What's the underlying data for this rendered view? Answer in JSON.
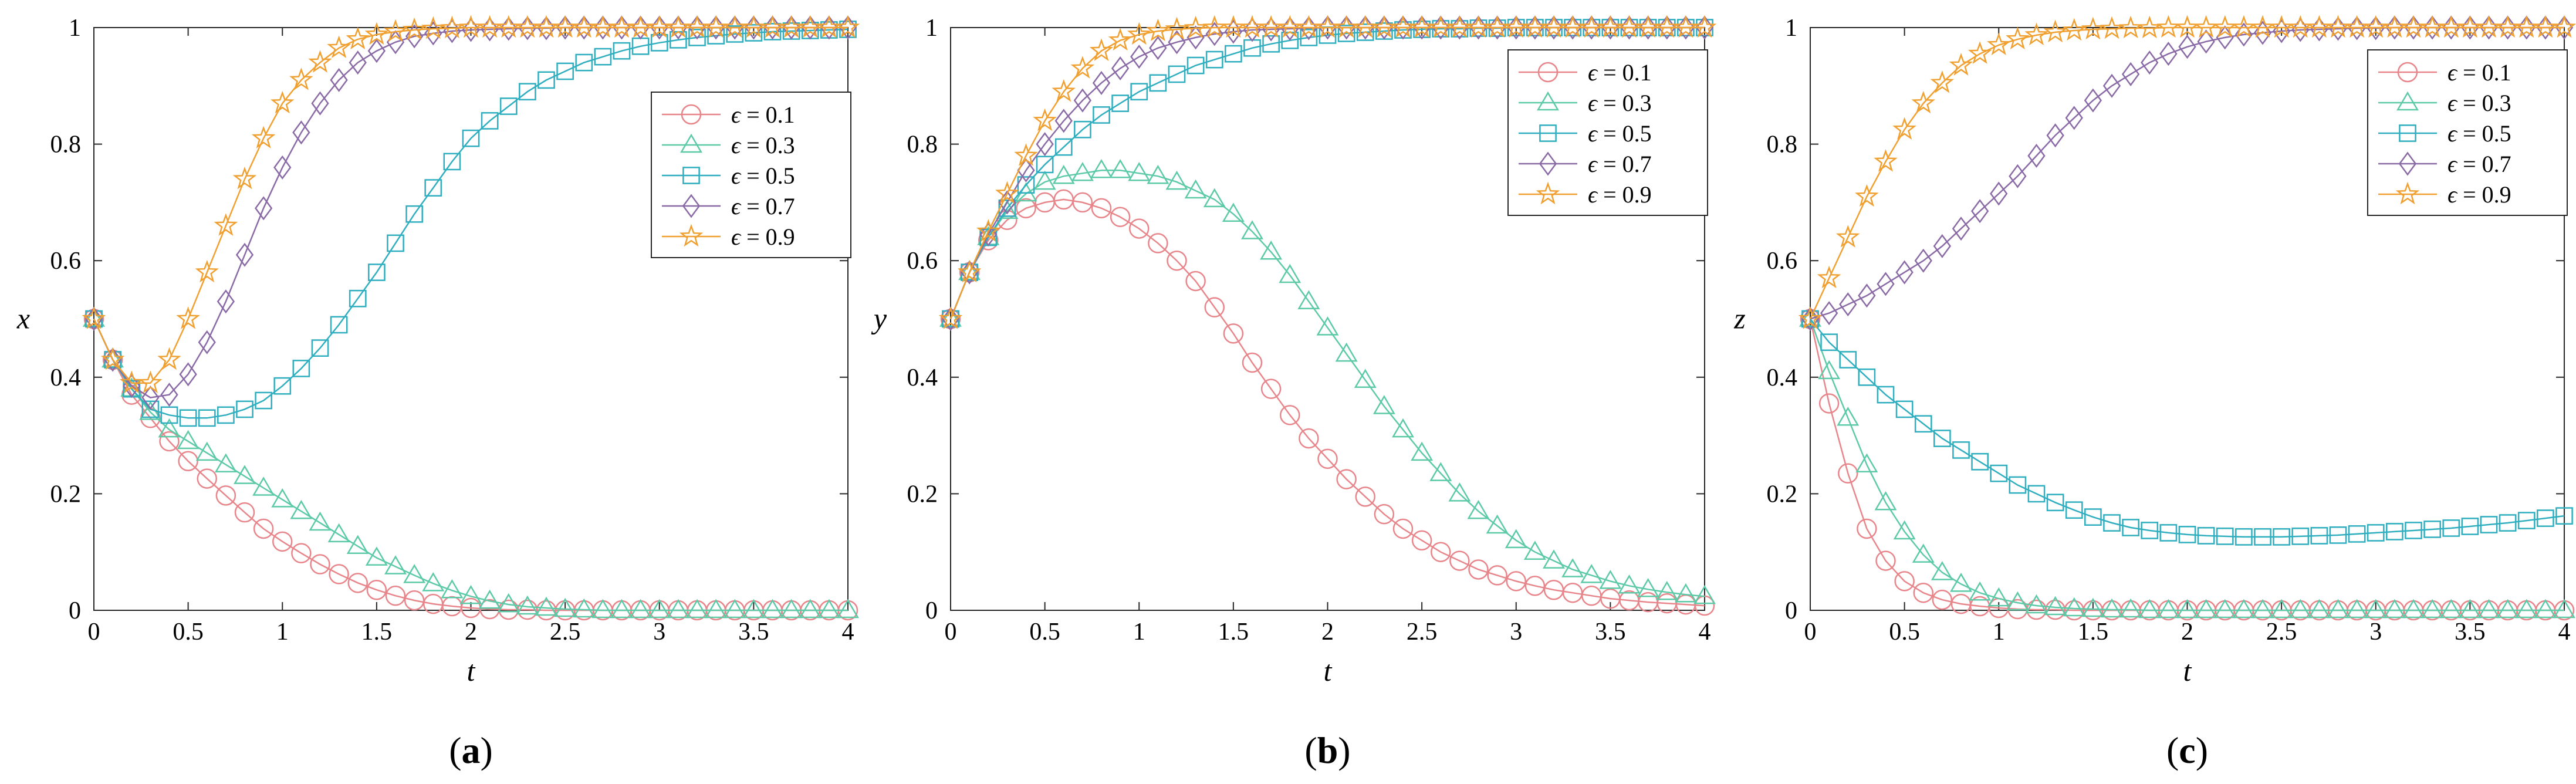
{
  "chart_data": [
    {
      "panel_label": "a",
      "caption": "(a)",
      "type": "line",
      "xlabel": "t",
      "ylabel": "x",
      "xlim": [
        0,
        4
      ],
      "ylim": [
        0,
        1
      ],
      "xticks": [
        "0",
        "0.5",
        "1",
        "1.5",
        "2",
        "2.5",
        "3",
        "3.5",
        "4"
      ],
      "yticks": [
        "0",
        "0.2",
        "0.4",
        "0.6",
        "0.8",
        "1"
      ],
      "legend_position": "top-right",
      "x": [
        0,
        0.1,
        0.2,
        0.3,
        0.4,
        0.5,
        0.6,
        0.7,
        0.8,
        0.9,
        1.0,
        1.1,
        1.2,
        1.3,
        1.4,
        1.5,
        1.6,
        1.7,
        1.8,
        1.9,
        2.0,
        2.1,
        2.2,
        2.3,
        2.4,
        2.5,
        2.6,
        2.7,
        2.8,
        2.9,
        3.0,
        3.1,
        3.2,
        3.3,
        3.4,
        3.5,
        3.6,
        3.7,
        3.8,
        3.9,
        4.0
      ],
      "series": [
        {
          "name": "ϵ = 0.1",
          "symbol": "ϵ",
          "label": "= 0.1",
          "color": "#e8858a",
          "marker": "circle",
          "values": [
            0.5,
            0.43,
            0.37,
            0.33,
            0.29,
            0.256,
            0.226,
            0.197,
            0.168,
            0.14,
            0.118,
            0.098,
            0.079,
            0.062,
            0.047,
            0.035,
            0.025,
            0.017,
            0.011,
            0.007,
            0.004,
            0.002,
            0.001,
            0.001,
            0,
            0,
            0,
            0,
            0,
            0,
            0,
            0,
            0,
            0,
            0,
            0,
            0,
            0,
            0,
            0,
            0
          ]
        },
        {
          "name": "ϵ = 0.3",
          "symbol": "ϵ",
          "label": "= 0.3",
          "color": "#5cc9a7",
          "marker": "triangle",
          "values": [
            0.5,
            0.43,
            0.38,
            0.34,
            0.31,
            0.29,
            0.27,
            0.25,
            0.23,
            0.21,
            0.19,
            0.17,
            0.15,
            0.13,
            0.11,
            0.09,
            0.075,
            0.06,
            0.046,
            0.034,
            0.024,
            0.016,
            0.01,
            0.006,
            0.004,
            0.002,
            0.001,
            0,
            0,
            0,
            0,
            0,
            0,
            0,
            0,
            0,
            0,
            0,
            0,
            0,
            0
          ]
        },
        {
          "name": "ϵ = 0.5",
          "symbol": "ϵ",
          "label": "= 0.5",
          "color": "#2eaebf",
          "marker": "square",
          "values": [
            0.5,
            0.43,
            0.38,
            0.345,
            0.335,
            0.33,
            0.33,
            0.335,
            0.345,
            0.36,
            0.385,
            0.415,
            0.45,
            0.49,
            0.535,
            0.58,
            0.63,
            0.68,
            0.725,
            0.77,
            0.81,
            0.84,
            0.865,
            0.89,
            0.91,
            0.925,
            0.94,
            0.95,
            0.96,
            0.968,
            0.974,
            0.979,
            0.983,
            0.986,
            0.989,
            0.991,
            0.993,
            0.994,
            0.995,
            0.996,
            0.997
          ]
        },
        {
          "name": "ϵ = 0.7",
          "symbol": "ϵ",
          "label": "= 0.7",
          "color": "#8a6aa6",
          "marker": "diamond",
          "values": [
            0.5,
            0.43,
            0.385,
            0.365,
            0.37,
            0.405,
            0.46,
            0.53,
            0.61,
            0.69,
            0.76,
            0.82,
            0.87,
            0.91,
            0.94,
            0.96,
            0.975,
            0.985,
            0.99,
            0.994,
            0.996,
            0.997,
            0.998,
            0.999,
            0.999,
            1,
            1,
            1,
            1,
            1,
            1,
            1,
            1,
            1,
            1,
            1,
            1,
            1,
            1,
            1,
            1
          ]
        },
        {
          "name": "ϵ = 0.9",
          "symbol": "ϵ",
          "label": "= 0.9",
          "color": "#f0a030",
          "marker": "star",
          "values": [
            0.5,
            0.43,
            0.39,
            0.39,
            0.43,
            0.5,
            0.58,
            0.66,
            0.74,
            0.81,
            0.87,
            0.91,
            0.94,
            0.965,
            0.98,
            0.988,
            0.993,
            0.996,
            0.998,
            0.999,
            1,
            1,
            1,
            1,
            1,
            1,
            1,
            1,
            1,
            1,
            1,
            1,
            1,
            1,
            1,
            1,
            1,
            1,
            1,
            1,
            1
          ]
        }
      ]
    },
    {
      "panel_label": "b",
      "caption": "(b)",
      "type": "line",
      "xlabel": "t",
      "ylabel": "y",
      "xlim": [
        0,
        4
      ],
      "ylim": [
        0,
        1
      ],
      "xticks": [
        "0",
        "0.5",
        "1",
        "1.5",
        "2",
        "2.5",
        "3",
        "3.5",
        "4"
      ],
      "yticks": [
        "0",
        "0.2",
        "0.4",
        "0.6",
        "0.8",
        "1"
      ],
      "legend_position": "top-right",
      "x": [
        0,
        0.1,
        0.2,
        0.3,
        0.4,
        0.5,
        0.6,
        0.7,
        0.8,
        0.9,
        1.0,
        1.1,
        1.2,
        1.3,
        1.4,
        1.5,
        1.6,
        1.7,
        1.8,
        1.9,
        2.0,
        2.1,
        2.2,
        2.3,
        2.4,
        2.5,
        2.6,
        2.7,
        2.8,
        2.9,
        3.0,
        3.1,
        3.2,
        3.3,
        3.4,
        3.5,
        3.6,
        3.7,
        3.8,
        3.9,
        4.0
      ],
      "series": [
        {
          "name": "ϵ = 0.1",
          "symbol": "ϵ",
          "label": "= 0.1",
          "color": "#e8858a",
          "marker": "circle",
          "values": [
            0.5,
            0.58,
            0.635,
            0.67,
            0.69,
            0.7,
            0.705,
            0.7,
            0.69,
            0.675,
            0.655,
            0.63,
            0.6,
            0.565,
            0.52,
            0.475,
            0.425,
            0.38,
            0.335,
            0.295,
            0.26,
            0.225,
            0.195,
            0.165,
            0.14,
            0.12,
            0.1,
            0.085,
            0.07,
            0.06,
            0.05,
            0.042,
            0.035,
            0.03,
            0.025,
            0.02,
            0.017,
            0.014,
            0.012,
            0.01,
            0.008
          ]
        },
        {
          "name": "ϵ = 0.3",
          "symbol": "ϵ",
          "label": "= 0.3",
          "color": "#5cc9a7",
          "marker": "triangle",
          "values": [
            0.5,
            0.58,
            0.64,
            0.685,
            0.715,
            0.735,
            0.745,
            0.75,
            0.755,
            0.755,
            0.75,
            0.745,
            0.735,
            0.72,
            0.705,
            0.68,
            0.65,
            0.615,
            0.575,
            0.53,
            0.485,
            0.44,
            0.395,
            0.35,
            0.31,
            0.27,
            0.235,
            0.2,
            0.17,
            0.145,
            0.12,
            0.1,
            0.085,
            0.07,
            0.06,
            0.05,
            0.042,
            0.036,
            0.031,
            0.027,
            0.024
          ]
        },
        {
          "name": "ϵ = 0.5",
          "symbol": "ϵ",
          "label": "= 0.5",
          "color": "#2eaebf",
          "marker": "square",
          "values": [
            0.5,
            0.58,
            0.64,
            0.69,
            0.73,
            0.765,
            0.795,
            0.825,
            0.85,
            0.87,
            0.89,
            0.905,
            0.92,
            0.935,
            0.945,
            0.955,
            0.965,
            0.972,
            0.978,
            0.983,
            0.987,
            0.99,
            0.992,
            0.994,
            0.996,
            0.997,
            0.998,
            0.998,
            0.999,
            0.999,
            1,
            1,
            1,
            1,
            1,
            1,
            1,
            1,
            1,
            1,
            1
          ]
        },
        {
          "name": "ϵ = 0.7",
          "symbol": "ϵ",
          "label": "= 0.7",
          "color": "#8a6aa6",
          "marker": "diamond",
          "values": [
            0.5,
            0.58,
            0.645,
            0.7,
            0.755,
            0.8,
            0.84,
            0.875,
            0.905,
            0.93,
            0.95,
            0.965,
            0.975,
            0.983,
            0.989,
            0.993,
            0.996,
            0.997,
            0.998,
            0.999,
            1,
            1,
            1,
            1,
            1,
            1,
            1,
            1,
            1,
            1,
            1,
            1,
            1,
            1,
            1,
            1,
            1,
            1,
            1,
            1,
            1
          ]
        },
        {
          "name": "ϵ = 0.9",
          "symbol": "ϵ",
          "label": "= 0.9",
          "color": "#f0a030",
          "marker": "star",
          "values": [
            0.5,
            0.58,
            0.65,
            0.715,
            0.78,
            0.84,
            0.89,
            0.93,
            0.96,
            0.978,
            0.988,
            0.994,
            0.997,
            0.999,
            1,
            1,
            1,
            1,
            1,
            1,
            1,
            1,
            1,
            1,
            1,
            1,
            1,
            1,
            1,
            1,
            1,
            1,
            1,
            1,
            1,
            1,
            1,
            1,
            1,
            1,
            1
          ]
        }
      ]
    },
    {
      "panel_label": "c",
      "caption": "(c)",
      "type": "line",
      "xlabel": "t",
      "ylabel": "z",
      "xlim": [
        0,
        4
      ],
      "ylim": [
        0,
        1
      ],
      "xticks": [
        "0",
        "0.5",
        "1",
        "1.5",
        "2",
        "2.5",
        "3",
        "3.5",
        "4"
      ],
      "yticks": [
        "0",
        "0.2",
        "0.4",
        "0.6",
        "0.8",
        "1"
      ],
      "legend_position": "top-right",
      "x": [
        0,
        0.1,
        0.2,
        0.3,
        0.4,
        0.5,
        0.6,
        0.7,
        0.8,
        0.9,
        1.0,
        1.1,
        1.2,
        1.3,
        1.4,
        1.5,
        1.6,
        1.7,
        1.8,
        1.9,
        2.0,
        2.1,
        2.2,
        2.3,
        2.4,
        2.5,
        2.6,
        2.7,
        2.8,
        2.9,
        3.0,
        3.1,
        3.2,
        3.3,
        3.4,
        3.5,
        3.6,
        3.7,
        3.8,
        3.9,
        4.0
      ],
      "series": [
        {
          "name": "ϵ = 0.1",
          "symbol": "ϵ",
          "label": "= 0.1",
          "color": "#e8858a",
          "marker": "circle",
          "values": [
            0.5,
            0.355,
            0.235,
            0.14,
            0.085,
            0.05,
            0.03,
            0.018,
            0.011,
            0.007,
            0.004,
            0.002,
            0.001,
            0.001,
            0,
            0,
            0,
            0,
            0,
            0,
            0,
            0,
            0,
            0,
            0,
            0,
            0,
            0,
            0,
            0,
            0,
            0,
            0,
            0,
            0,
            0,
            0,
            0,
            0,
            0,
            0
          ]
        },
        {
          "name": "ϵ = 0.3",
          "symbol": "ϵ",
          "label": "= 0.3",
          "color": "#5cc9a7",
          "marker": "triangle",
          "values": [
            0.5,
            0.41,
            0.33,
            0.25,
            0.185,
            0.135,
            0.095,
            0.065,
            0.045,
            0.03,
            0.02,
            0.013,
            0.008,
            0.005,
            0.003,
            0.002,
            0.001,
            0.001,
            0,
            0,
            0,
            0,
            0,
            0,
            0,
            0,
            0,
            0,
            0,
            0,
            0,
            0,
            0,
            0,
            0,
            0,
            0,
            0,
            0,
            0,
            0
          ]
        },
        {
          "name": "ϵ = 0.5",
          "symbol": "ϵ",
          "label": "= 0.5",
          "color": "#2eaebf",
          "marker": "square",
          "values": [
            0.5,
            0.46,
            0.43,
            0.4,
            0.37,
            0.345,
            0.32,
            0.295,
            0.275,
            0.255,
            0.235,
            0.215,
            0.2,
            0.185,
            0.172,
            0.16,
            0.15,
            0.142,
            0.137,
            0.133,
            0.13,
            0.128,
            0.127,
            0.126,
            0.126,
            0.126,
            0.127,
            0.128,
            0.129,
            0.131,
            0.133,
            0.135,
            0.137,
            0.139,
            0.141,
            0.144,
            0.147,
            0.15,
            0.154,
            0.158,
            0.162
          ]
        },
        {
          "name": "ϵ = 0.7",
          "symbol": "ϵ",
          "label": "= 0.7",
          "color": "#8a6aa6",
          "marker": "diamond",
          "values": [
            0.5,
            0.51,
            0.525,
            0.54,
            0.56,
            0.58,
            0.6,
            0.625,
            0.655,
            0.685,
            0.715,
            0.745,
            0.78,
            0.815,
            0.845,
            0.875,
            0.9,
            0.92,
            0.94,
            0.955,
            0.967,
            0.976,
            0.983,
            0.988,
            0.991,
            0.994,
            0.996,
            0.997,
            0.998,
            0.999,
            0.999,
            1,
            1,
            1,
            1,
            1,
            1,
            1,
            1,
            1,
            1
          ]
        },
        {
          "name": "ϵ = 0.9",
          "symbol": "ϵ",
          "label": "= 0.9",
          "color": "#f0a030",
          "marker": "star",
          "values": [
            0.5,
            0.57,
            0.64,
            0.71,
            0.77,
            0.825,
            0.87,
            0.905,
            0.935,
            0.955,
            0.97,
            0.98,
            0.987,
            0.992,
            0.995,
            0.997,
            0.998,
            0.999,
            0.999,
            1,
            1,
            1,
            1,
            1,
            1,
            1,
            1,
            1,
            1,
            1,
            1,
            1,
            1,
            1,
            1,
            1,
            1,
            1,
            1,
            1,
            1
          ]
        }
      ]
    }
  ]
}
